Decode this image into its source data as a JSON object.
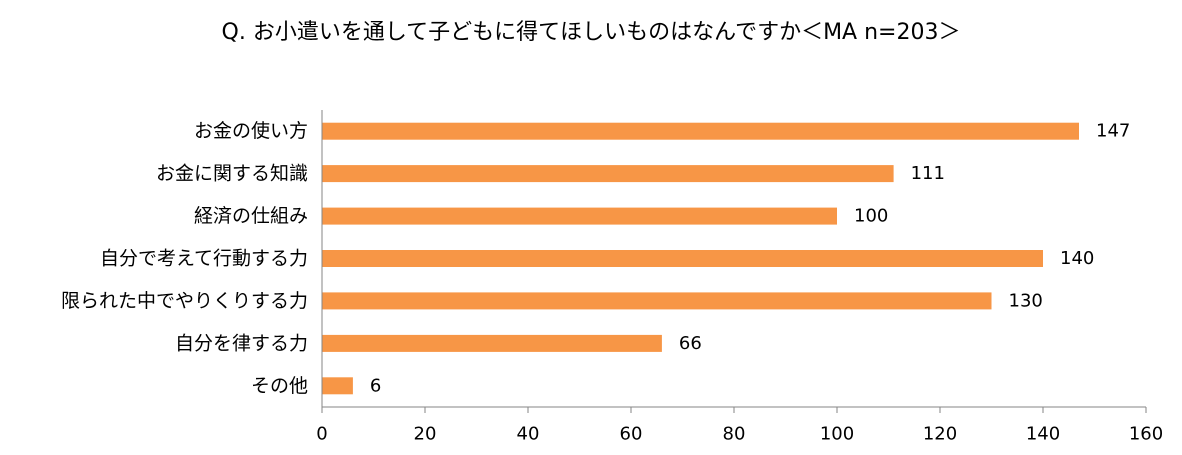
{
  "chart_data": {
    "type": "bar",
    "orientation": "horizontal",
    "title": "Q. お小遣いを通して子どもに得てほしいものはなんですか＜MA n=203＞",
    "categories": [
      "お金の使い方",
      "お金に関する知識",
      "経済の仕組み",
      "自分で考えて行動する力",
      "限られた中でやりくりする力",
      "自分を律する力",
      "その他"
    ],
    "values": [
      147,
      111,
      100,
      140,
      130,
      66,
      6
    ],
    "value_labels": [
      "147",
      "111",
      "100",
      "140",
      "130",
      "66",
      "6"
    ],
    "xlim": [
      0,
      160
    ],
    "xticks": [
      "0",
      "20",
      "40",
      "60",
      "80",
      "100",
      "120",
      "140",
      "160"
    ],
    "xlabel": "",
    "ylabel": "",
    "grid": false,
    "legend": "none",
    "bar_color": "#F79646",
    "axis_color": "#868686"
  }
}
